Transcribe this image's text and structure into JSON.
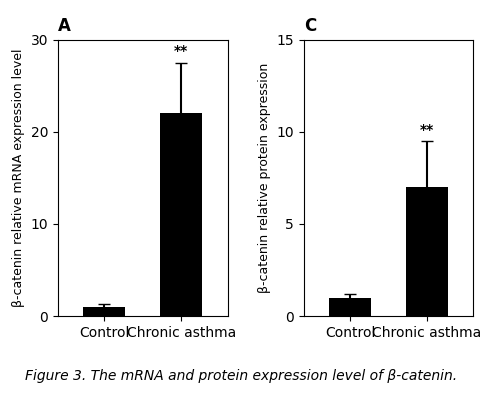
{
  "chart_data": [
    {
      "type": "bar",
      "title": "A",
      "categories": [
        "Control",
        "Chronic asthma"
      ],
      "values": [
        1.0,
        22.0
      ],
      "errors": [
        0.3,
        5.5
      ],
      "color": "#000000",
      "ylabel": "β-catenin relative mRNA expression level",
      "ylim": [
        0,
        30
      ],
      "yticks": [
        0,
        10,
        20,
        30
      ],
      "annotations": [
        {
          "category": "Chronic asthma",
          "text": "**"
        }
      ]
    },
    {
      "type": "bar",
      "title": "C",
      "categories": [
        "Control",
        "Chronic asthma"
      ],
      "values": [
        1.0,
        7.0
      ],
      "errors": [
        0.2,
        2.5
      ],
      "color": "#000000",
      "ylabel": "β-catenin relative protein expression",
      "ylim": [
        0,
        15
      ],
      "yticks": [
        0,
        5,
        10,
        15
      ],
      "annotations": [
        {
          "category": "Chronic asthma",
          "text": "**"
        }
      ]
    }
  ],
  "caption": "Figure 3. The mRNA and protein expression level of β-catenin."
}
